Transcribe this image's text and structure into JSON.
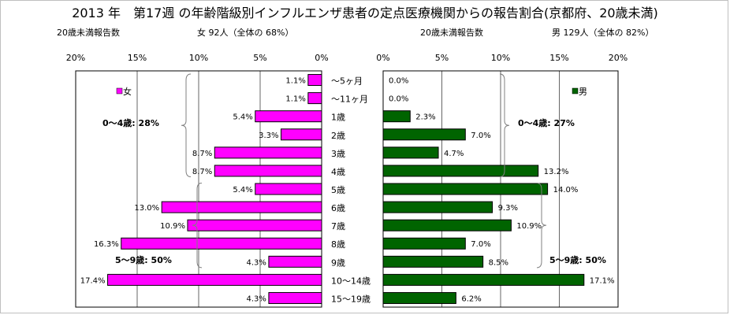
{
  "title": "2013 年　第17週 の年齢階級別インフルエンザ患者の定点医療機関からの報告割合(京都府、20歳未満)",
  "left_panel": {
    "count_label": "20歳未満報告数",
    "summary": "女  92人（全体の  68%）",
    "legend": "女",
    "group_labels": [
      "0～4歳:  28%",
      "5～9歳:  50%"
    ]
  },
  "right_panel": {
    "count_label": "20歳未満報告数",
    "summary": "男  129人（全体の  82%）",
    "legend": "男",
    "group_labels": [
      "0～4歳:  27%",
      "5～9歳:  50%"
    ]
  },
  "colors": {
    "female": "#ff00ff",
    "male": "#006400",
    "bar_stroke": "#000000",
    "grid": "#000000",
    "bracket": "#808080"
  },
  "chart_data": {
    "type": "bar",
    "orientation": "horizontal",
    "categories": [
      "～5ヶ月",
      "～11ヶ月",
      "1歳",
      "2歳",
      "3歳",
      "4歳",
      "5歳",
      "6歳",
      "7歳",
      "8歳",
      "9歳",
      "10～14歳",
      "15～19歳"
    ],
    "xlim": [
      0,
      20
    ],
    "x_ticks": [
      "20%",
      "15%",
      "10%",
      "5%",
      "0%"
    ],
    "x_ticks_right": [
      "0%",
      "5%",
      "10%",
      "15%",
      "20%"
    ],
    "grid": true,
    "series": [
      {
        "name": "女",
        "values": [
          1.1,
          1.1,
          5.4,
          3.3,
          8.7,
          8.7,
          5.4,
          13.0,
          10.9,
          16.3,
          4.3,
          17.4,
          4.3
        ],
        "labels": [
          "1.1%",
          "1.1%",
          "5.4%",
          "3.3%",
          "8.7%",
          "8.7%",
          "5.4%",
          "13.0%",
          "10.9%",
          "16.3%",
          "4.3%",
          "17.4%",
          "4.3%"
        ]
      },
      {
        "name": "男",
        "values": [
          0.0,
          0.0,
          2.3,
          7.0,
          4.7,
          13.2,
          14.0,
          9.3,
          10.9,
          7.0,
          8.5,
          17.1,
          6.2
        ],
        "labels": [
          "0.0%",
          "0.0%",
          "2.3%",
          "7.0%",
          "4.7%",
          "13.2%",
          "14.0%",
          "9.3%",
          "10.9%",
          "7.0%",
          "8.5%",
          "17.1%",
          "6.2%"
        ]
      }
    ]
  }
}
